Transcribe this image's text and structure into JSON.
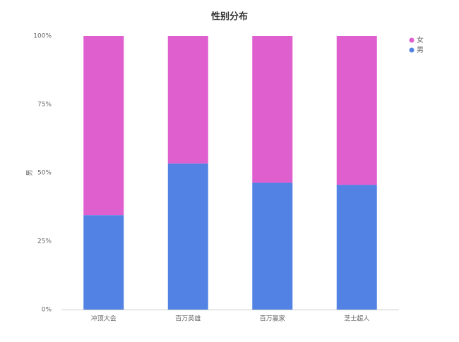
{
  "chart_data": {
    "type": "stacked_percent_bar",
    "title": "性别分布",
    "y_label": "男",
    "categories": [
      "冲顶大会",
      "百万英雄",
      "百万赢家",
      "芝士超人"
    ],
    "series": [
      {
        "name": "男",
        "color": "#5283e4",
        "values": [
          34.5,
          53.4,
          46.4,
          45.6
        ]
      },
      {
        "name": "女",
        "color": "#df5fcf",
        "values": [
          65.5,
          46.6,
          53.6,
          54.4
        ]
      }
    ],
    "ylim": [
      0,
      100
    ],
    "yticks": [
      {
        "value": 0,
        "label": "0%"
      },
      {
        "value": 25,
        "label": "25%"
      },
      {
        "value": 50,
        "label": "50%"
      },
      {
        "value": 75,
        "label": "75%"
      },
      {
        "value": 100,
        "label": "100%"
      }
    ],
    "grid": false,
    "legend_position": "top-right"
  }
}
